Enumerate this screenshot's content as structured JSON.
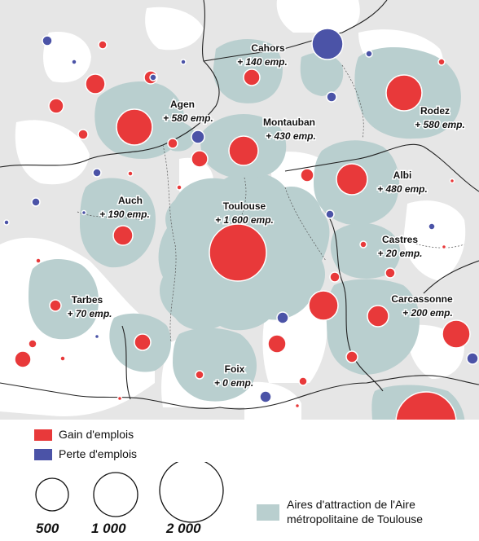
{
  "colors": {
    "gain": "#e8393a",
    "loss": "#4b53a7",
    "area": "#b9cfcf",
    "background": "#e6e6e6",
    "white_holes": "#ffffff",
    "borders": "#222222"
  },
  "cities": [
    {
      "name": "Cahors",
      "emp": "+ 140 emp."
    },
    {
      "name": "Agen",
      "emp": "+ 580 emp."
    },
    {
      "name": "Montauban",
      "emp": "+ 430 emp."
    },
    {
      "name": "Rodez",
      "emp": "+ 580 emp."
    },
    {
      "name": "Albi",
      "emp": "+ 480 emp."
    },
    {
      "name": "Auch",
      "emp": "+ 190 emp."
    },
    {
      "name": "Toulouse",
      "emp": "+ 1 600 emp."
    },
    {
      "name": "Castres",
      "emp": "+ 20 emp."
    },
    {
      "name": "Tarbes",
      "emp": "+ 70 emp."
    },
    {
      "name": "Carcassonne",
      "emp": "+ 200 emp."
    },
    {
      "name": "Foix",
      "emp": "+ 0 emp."
    }
  ],
  "legend": {
    "gain": "Gain d'emplois",
    "loss": "Perte d'emplois",
    "sizes": [
      "500",
      "1 000",
      "2 000"
    ],
    "area_line1": "Aires d'attraction de l'Aire",
    "area_line2": "métropolitaine de Toulouse"
  }
}
